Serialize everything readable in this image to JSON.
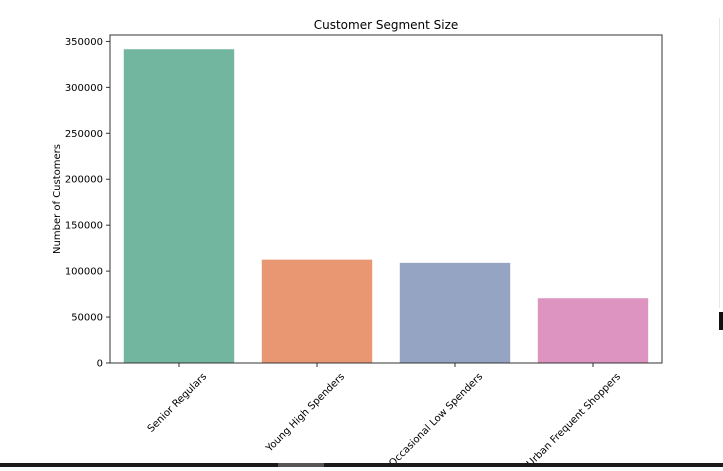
{
  "chart_data": {
    "type": "bar",
    "title": "Customer Segment Size",
    "xlabel": "",
    "ylabel": "Number of Customers",
    "categories": [
      "Senior Regulars",
      "Young High Spenders",
      "Occasional Low Spenders",
      "Urban Frequent Shoppers"
    ],
    "values": [
      341500,
      112500,
      109000,
      70500
    ],
    "colors": [
      "#72b6a0",
      "#e99673",
      "#96a4c4",
      "#dd94c0"
    ],
    "ylim": [
      0,
      357000
    ],
    "yticks": [
      0,
      50000,
      100000,
      150000,
      200000,
      250000,
      300000,
      350000
    ],
    "grid": false
  }
}
